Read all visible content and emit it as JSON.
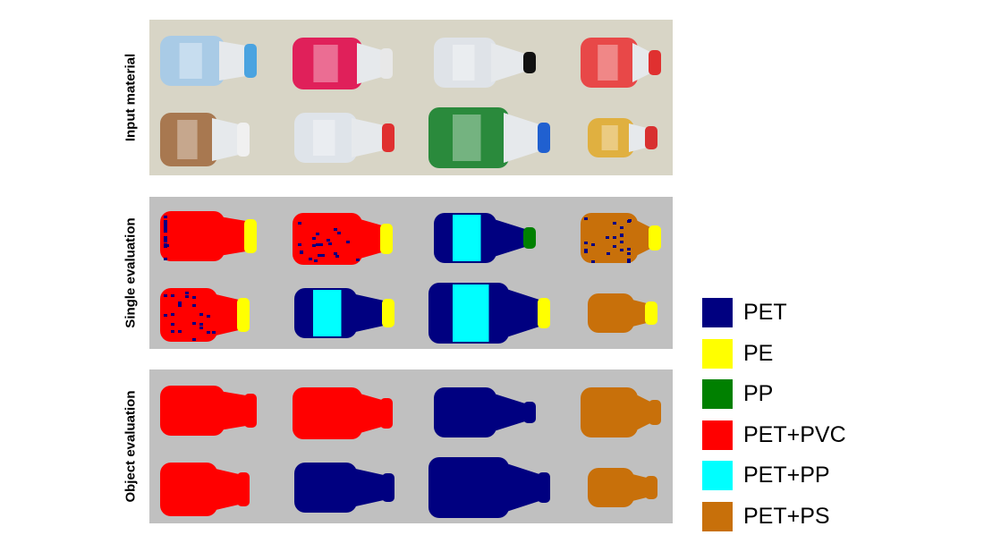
{
  "rows": [
    {
      "label": "Input material"
    },
    {
      "label": "Single evaluation"
    },
    {
      "label": "Object evaluation"
    }
  ],
  "legend": [
    {
      "label": "PET",
      "color": "#000080"
    },
    {
      "label": "PE",
      "color": "#ffff00"
    },
    {
      "label": "PP",
      "color": "#008000"
    },
    {
      "label": "PET+PVC",
      "color": "#ff0000"
    },
    {
      "label": "PET+PP",
      "color": "#00ffff"
    },
    {
      "label": "PET+PS",
      "color": "#c8700a"
    }
  ],
  "photo_bottles": [
    {
      "body": "#a9cbe6",
      "cap": "#4aa3e0"
    },
    {
      "body": "#e0205a",
      "cap": "#e8e8e8"
    },
    {
      "body": "#dfe3e8",
      "cap": "#111111"
    },
    {
      "body": "#e84848",
      "cap": "#e03030"
    },
    {
      "body": "#a87850",
      "cap": "#f0f0f0"
    },
    {
      "body": "#dfe4ea",
      "cap": "#e03030"
    },
    {
      "body": "#2a8a3c",
      "cap": "#2060d0"
    },
    {
      "body": "#e0b040",
      "cap": "#d83030"
    }
  ],
  "single_evaluation": [
    {
      "body": "PET+PVC",
      "speckle": "PET",
      "band": null,
      "cap": "PE"
    },
    {
      "body": "PET+PVC",
      "speckle": "PET",
      "band": null,
      "cap": "PE"
    },
    {
      "body": "PET",
      "speckle": null,
      "band": "PET+PP",
      "cap": "PP"
    },
    {
      "body": "PET+PS",
      "speckle": "PET",
      "band": null,
      "cap": "PE"
    },
    {
      "body": "PET+PVC",
      "speckle": "PET",
      "band": null,
      "cap": "PE"
    },
    {
      "body": "PET",
      "speckle": null,
      "band": "PET+PP",
      "cap": "PE"
    },
    {
      "body": "PET",
      "speckle": null,
      "band": "PET+PP",
      "cap": "PE"
    },
    {
      "body": "PET+PS",
      "speckle": null,
      "band": null,
      "cap": "PE"
    }
  ],
  "object_evaluation": [
    "PET+PVC",
    "PET+PVC",
    "PET",
    "PET+PS",
    "PET+PVC",
    "PET",
    "PET",
    "PET+PS"
  ]
}
